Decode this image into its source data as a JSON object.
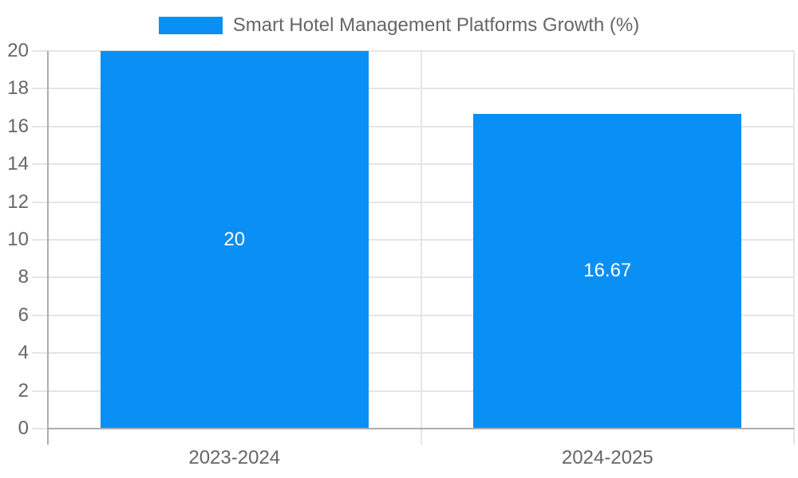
{
  "chart_data": {
    "type": "bar",
    "title": "Smart Hotel Management Platforms Growth (%)",
    "legend_entries": [
      "Smart Hotel Management Platforms Growth (%)"
    ],
    "legend_position": "top-center",
    "categories": [
      "2023-2024",
      "2024-2025"
    ],
    "values": [
      20,
      16.67
    ],
    "value_labels": [
      "20",
      "16.67"
    ],
    "xlabel": "",
    "ylabel": "",
    "ylim": [
      0,
      20
    ],
    "ytick_step": 2,
    "ytick_labels": [
      "0",
      "2",
      "4",
      "6",
      "8",
      "10",
      "12",
      "14",
      "16",
      "18",
      "20"
    ],
    "grid": true
  },
  "colors": {
    "bar": "#0A8FF5",
    "value_label": "#FFFFFF",
    "axis_text": "#666666",
    "legend_text": "#666666",
    "gridline": "#E5E5E5",
    "axis_line": "#ADADAD",
    "background": "#FFFFFF"
  }
}
